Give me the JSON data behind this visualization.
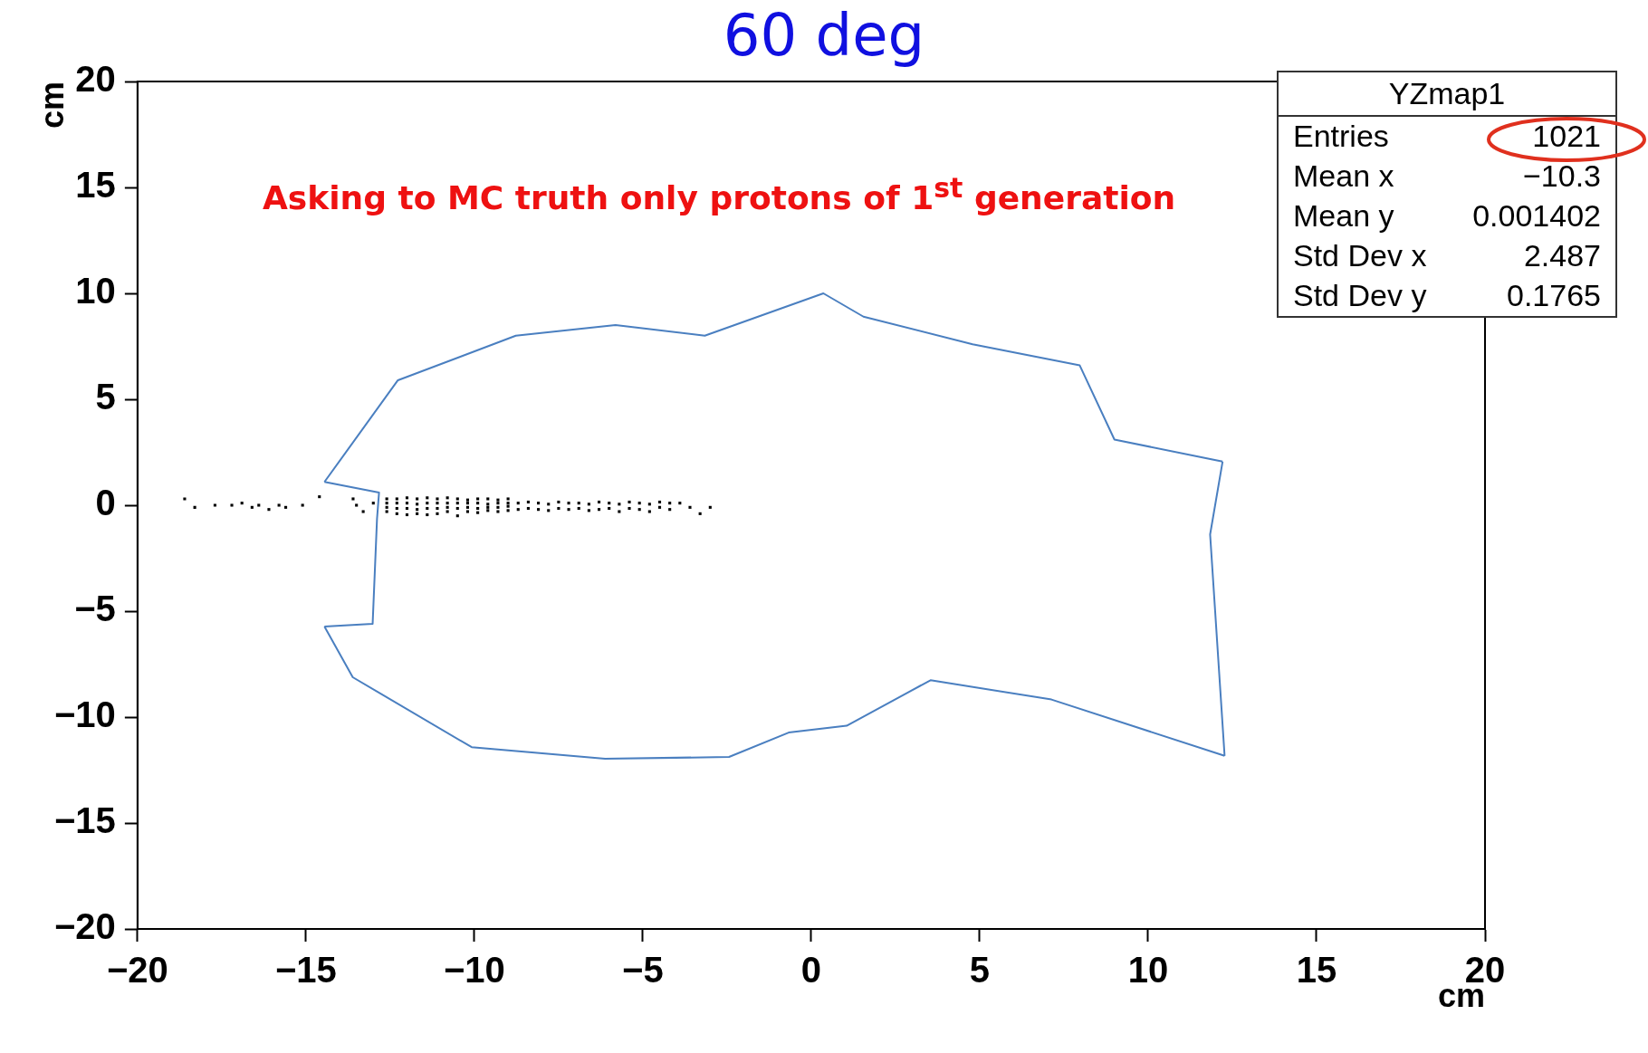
{
  "chart_data": {
    "type": "scatter",
    "title": "60 deg",
    "xlabel": "cm",
    "ylabel": "cm",
    "xlim": [
      -20,
      20
    ],
    "ylim": [
      -20,
      20
    ],
    "xticks": [
      {
        "value": -20,
        "label": "−20"
      },
      {
        "value": -15,
        "label": "−15"
      },
      {
        "value": -10,
        "label": "−10"
      },
      {
        "value": -5,
        "label": "−5"
      },
      0,
      5,
      10,
      15,
      20
    ],
    "yticks": [
      {
        "value": -20,
        "label": "−20"
      },
      {
        "value": -15,
        "label": "−15"
      },
      {
        "value": -10,
        "label": "−10"
      },
      {
        "value": -5,
        "label": "−5"
      },
      0,
      5,
      10,
      15,
      20
    ],
    "grid": false,
    "legend": false,
    "marker": "square",
    "annotations": [
      "Asking to MC truth only protons of 1$^{st}$ generation",
      "YZmap1",
      "Entries",
      "1021",
      "Mean x",
      "−10.3",
      "Mean y",
      "0.001402",
      "Std Dev x",
      "2.487",
      "Std Dev y",
      "0.1765"
    ],
    "series": [
      {
        "color": "#000000",
        "x": [
          -18.6,
          -18.3,
          -17.7,
          -17.2,
          -16.9,
          -16.6,
          -16.4,
          -16.1,
          -15.8,
          -15.6,
          -15.1,
          -14.6,
          -13.6,
          -13.5,
          -13.3,
          -13.0,
          -12.6,
          -12.6,
          -12.6,
          -12.6,
          -12.3,
          -12.3,
          -12.3,
          -12.3,
          -12.0,
          -12.0,
          -12.0,
          -12.0,
          -11.7,
          -11.7,
          -11.7,
          -11.7,
          -11.4,
          -11.4,
          -11.4,
          -11.4,
          -11.1,
          -11.1,
          -11.1,
          -11.1,
          -10.8,
          -10.8,
          -10.8,
          -10.8,
          -10.5,
          -10.5,
          -10.5,
          -10.5,
          -10.2,
          -10.2,
          -10.2,
          -10.2,
          -9.9,
          -9.9,
          -9.9,
          -9.9,
          -9.6,
          -9.6,
          -9.6,
          -9.6,
          -9.3,
          -9.3,
          -9.3,
          -9.3,
          -9.0,
          -9.0,
          -9.0,
          -9.0,
          -8.7,
          -8.7,
          -8.4,
          -8.4,
          -8.1,
          -8.1,
          -7.8,
          -7.8,
          -7.5,
          -7.5,
          -7.2,
          -7.2,
          -6.9,
          -6.9,
          -6.6,
          -6.6,
          -6.3,
          -6.3,
          -6.0,
          -6.0,
          -5.7,
          -5.7,
          -5.4,
          -5.4,
          -5.1,
          -5.1,
          -4.8,
          -4.8,
          -4.5,
          -4.5,
          -4.2,
          -4.2,
          -3.9,
          -3.6,
          -3.3,
          -3.0
        ],
        "values": [
          0.3,
          -0.1,
          0.0,
          0.0,
          0.1,
          -0.1,
          0.0,
          -0.2,
          0.0,
          -0.1,
          0.0,
          0.4,
          0.3,
          0.0,
          -0.3,
          0.1,
          -0.3,
          -0.1,
          0.1,
          0.3,
          -0.4,
          -0.15,
          0.1,
          0.3,
          -0.45,
          -0.15,
          0.1,
          0.35,
          -0.4,
          -0.2,
          0.05,
          0.3,
          -0.45,
          -0.15,
          0.1,
          0.35,
          -0.4,
          -0.15,
          0.1,
          0.3,
          -0.3,
          -0.1,
          0.1,
          0.35,
          -0.5,
          -0.15,
          0.1,
          0.3,
          -0.3,
          -0.1,
          0.1,
          0.25,
          -0.35,
          -0.15,
          0.1,
          0.3,
          -0.25,
          -0.1,
          0.05,
          0.3,
          -0.3,
          -0.1,
          0.1,
          0.25,
          -0.25,
          -0.05,
          0.1,
          0.3,
          -0.2,
          0.1,
          -0.15,
          0.15,
          -0.2,
          0.1,
          -0.25,
          0.05,
          -0.15,
          0.15,
          -0.2,
          0.1,
          -0.15,
          0.1,
          -0.25,
          0.05,
          -0.2,
          0.15,
          -0.15,
          0.1,
          -0.3,
          0.05,
          -0.15,
          0.15,
          -0.2,
          0.1,
          -0.3,
          0.05,
          -0.1,
          0.15,
          -0.2,
          0.1,
          0.1,
          -0.1,
          -0.4,
          -0.1
        ]
      },
      {
        "type": "line",
        "color": "#4a7fc0",
        "marker": "none",
        "x": [
          -14.45,
          -12.27,
          -8.77,
          -5.81,
          -3.16,
          0.36,
          1.55,
          4.79,
          7.97,
          9.0,
          12.21
        ],
        "values": [
          1.1,
          5.9,
          8.0,
          8.5,
          8.0,
          10.0,
          8.9,
          7.6,
          6.6,
          3.1,
          2.06
        ]
      },
      {
        "type": "line",
        "color": "#4a7fc0",
        "marker": "none",
        "x": [
          12.21,
          11.84,
          12.27
        ],
        "values": [
          2.06,
          -1.38,
          -11.83
        ]
      },
      {
        "type": "line",
        "color": "#4a7fc0",
        "marker": "none",
        "x": [
          12.27,
          7.13,
          3.54,
          1.05,
          -0.67,
          -2.44,
          -6.12,
          -10.08,
          -13.61,
          -14.45
        ],
        "values": [
          -11.83,
          -9.17,
          -8.26,
          -10.41,
          -10.73,
          -11.88,
          -11.97,
          -11.42,
          -8.12,
          -5.73
        ]
      },
      {
        "type": "line",
        "color": "#4a7fc0",
        "marker": "none",
        "x": [
          -14.45,
          -13.02,
          -12.89,
          -12.83,
          -14.45
        ],
        "values": [
          -5.73,
          -5.6,
          -0.64,
          0.6,
          1.1
        ]
      }
    ]
  }
}
